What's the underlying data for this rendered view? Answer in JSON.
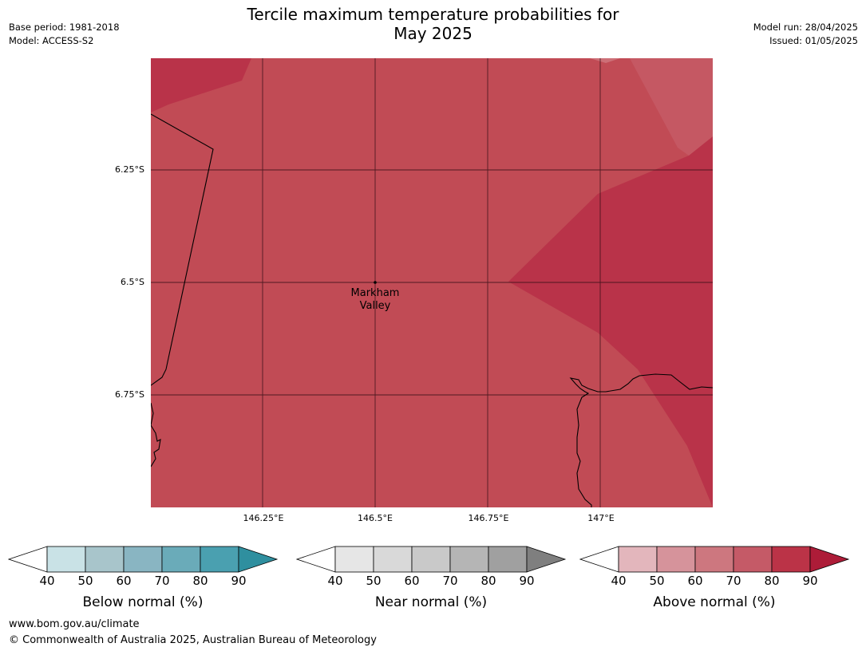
{
  "header": {
    "title_line1": "Tercile maximum temperature probabilities for",
    "title_line2": "May 2025",
    "base_period": "Base period: 1981-2018",
    "model": "Model: ACCESS-S2",
    "model_run": "Model run: 28/04/2025",
    "issued": "Issued: 01/05/2025"
  },
  "map": {
    "lat_labels": [
      "6.25°S",
      "6.5°S",
      "6.75°S"
    ],
    "lon_labels": [
      "146.25°E",
      "146.5°E",
      "146.75°E",
      "147°E"
    ],
    "place_marker": {
      "line1": "Markham",
      "line2": "Valley"
    },
    "fill_colors": {
      "above_70_80": "#c14b55",
      "above_80_90": "#b93349"
    }
  },
  "colorbars": [
    {
      "name": "below",
      "label": "Below normal (%)",
      "ticks": [
        "40",
        "50",
        "60",
        "70",
        "80",
        "90"
      ],
      "colors": [
        "#ffffff",
        "#c9e2e6",
        "#a8c5cb",
        "#89b5c2",
        "#6aabb9",
        "#4aa0b0",
        "#2f8f9f"
      ]
    },
    {
      "name": "near",
      "label": "Near normal (%)",
      "ticks": [
        "40",
        "50",
        "60",
        "70",
        "80",
        "90"
      ],
      "colors": [
        "#ffffff",
        "#e6e6e6",
        "#d9d9d9",
        "#c9c9c9",
        "#b5b5b5",
        "#a0a0a0",
        "#7f7f7f"
      ]
    },
    {
      "name": "above",
      "label": "Above normal (%)",
      "ticks": [
        "40",
        "50",
        "60",
        "70",
        "80",
        "90"
      ],
      "colors": [
        "#ffffff",
        "#e3b6bc",
        "#d6939b",
        "#cd777f",
        "#c55a67",
        "#bb3347",
        "#ad1c38"
      ]
    }
  ],
  "footer": {
    "url": "www.bom.gov.au/climate",
    "copyright": "© Commonwealth of Australia 2025, Australian Bureau of Meteorology"
  }
}
